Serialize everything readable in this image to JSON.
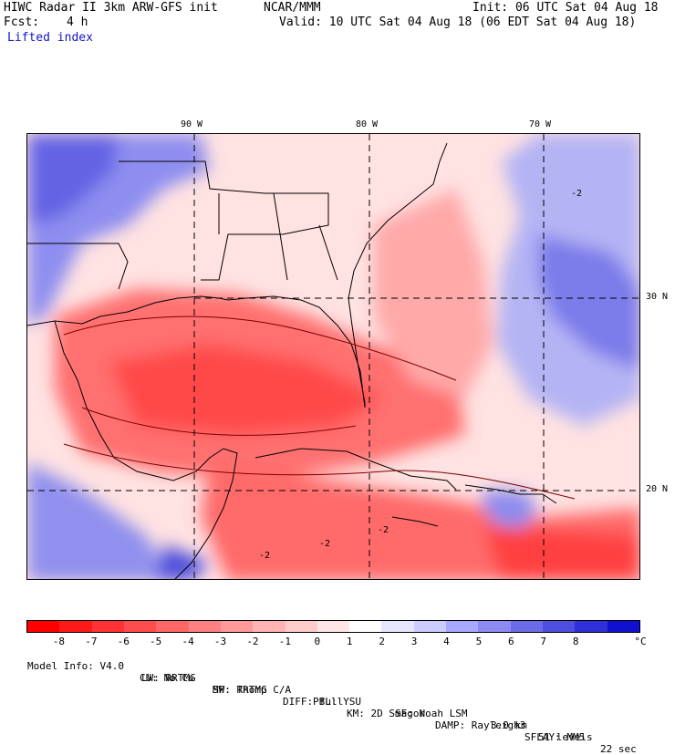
{
  "header": {
    "title_left": "HIWC Radar II 3km ARW-GFS init",
    "org": "NCAR/MMM",
    "init": "Init: 06 UTC Sat 04 Aug 18",
    "fcst_label": "Fcst:",
    "fcst_value": "4 h",
    "valid": "Valid: 10 UTC Sat 04 Aug 18 (06 EDT Sat 04 Aug 18)",
    "field": "Lifted index"
  },
  "map": {
    "lon_ticks": [
      "90 W",
      "80 W",
      "70 W"
    ],
    "lat_ticks": [
      "30 N",
      "20 N"
    ],
    "contour_labels": [
      "-2",
      "-2",
      "-2",
      "-2"
    ],
    "colors": {
      "strong_unstable": "#ff2a2a",
      "unstable": "#ff6a6a",
      "weak_unstable": "#ffb4b4",
      "neutral": "#ffe8e8",
      "stable": "#9a9af2",
      "strong_stable": "#3c3cd8"
    }
  },
  "colorbar": {
    "labels": [
      "-8",
      "-7",
      "-6",
      "-5",
      "-4",
      "-3",
      "-2",
      "-1",
      "0",
      "1",
      "2",
      "3",
      "4",
      "5",
      "6",
      "7",
      "8"
    ],
    "unit": "°C",
    "colors": [
      "#ff0000",
      "#ff1a1a",
      "#ff3333",
      "#ff4d4d",
      "#ff6666",
      "#ff8080",
      "#ff9999",
      "#ffb3b3",
      "#ffcccc",
      "#ffe6e6",
      "#ffffff",
      "#e6e6ff",
      "#ccccff",
      "#a8a8ff",
      "#8a8af2",
      "#6c6ce8",
      "#4e4ee0",
      "#3030d8",
      "#1010d0"
    ]
  },
  "footer": {
    "line1": [
      "Model Info: V4.0",
      "CU: No Cu",
      "MP: Thomp C/A",
      "PBL: YSU",
      "SF: Noah LSM",
      "3.0 km",
      "51 levels",
      "22 sec"
    ],
    "line2": [
      "LW: RRTMG",
      "SW: RRTMG",
      "DIFF: full",
      "KM: 2D Smagor",
      "DAMP: Rayleigh3",
      "SFLAY: MM5"
    ]
  }
}
